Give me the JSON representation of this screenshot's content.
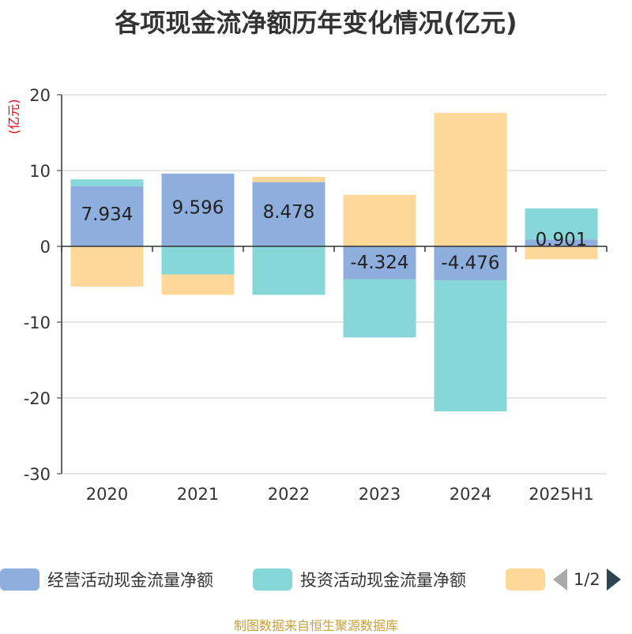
{
  "chart_data": {
    "type": "bar",
    "stacked": true,
    "title": "各项现金流净额历年变化情况(亿元)",
    "ylabel": "(亿元)",
    "xlabel": "",
    "categories": [
      "2020",
      "2021",
      "2022",
      "2023",
      "2024",
      "2025H1"
    ],
    "ylim": [
      -30,
      20
    ],
    "yticks": [
      20,
      10,
      0,
      -10,
      -20,
      -30
    ],
    "grid": true,
    "legend_position": "bottom",
    "series": [
      {
        "name": "经营活动现金流量净额",
        "color": "#8eaedd",
        "values": [
          7.934,
          9.596,
          8.478,
          -4.324,
          -4.476,
          0.901
        ],
        "labels": [
          "7.934",
          "9.596",
          "8.478",
          "-4.324",
          "-4.476",
          "0.901"
        ]
      },
      {
        "name": "投资活动现金流量净额",
        "color": "#87d6d8",
        "values": [
          0.9,
          -3.7,
          -6.4,
          -7.7,
          -17.3,
          4.1
        ]
      },
      {
        "name": "",
        "color": "#fed898",
        "values": [
          -5.3,
          -2.7,
          0.7,
          6.8,
          17.6,
          -1.7
        ]
      }
    ]
  },
  "legend": {
    "page_text": "1/2"
  },
  "source": "制图数据来自恒生聚源数据库"
}
